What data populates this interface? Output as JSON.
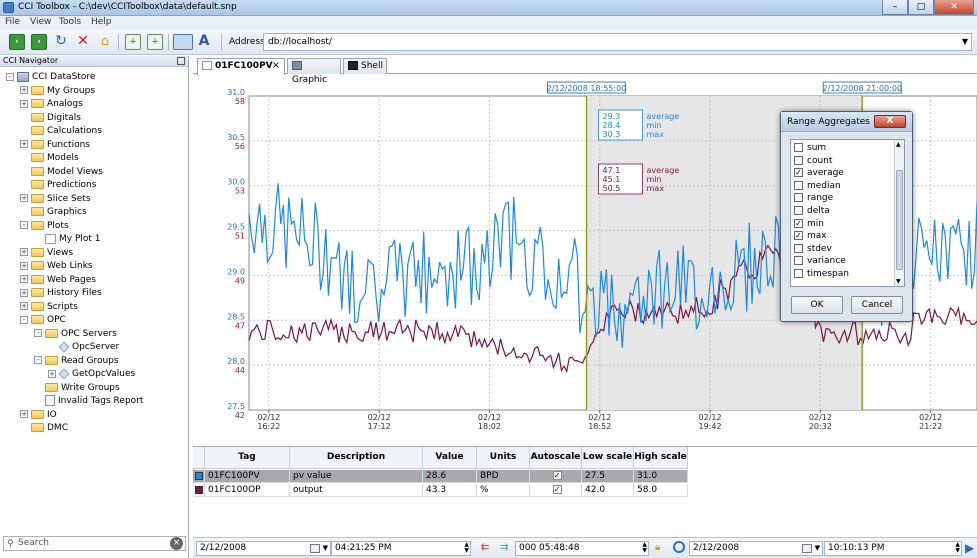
{
  "window": {
    "title": "CCI Toolbox - C:\\dev\\CCIToolbox\\data\\default.snp"
  },
  "menu": [
    "File",
    "View",
    "Tools",
    "Help"
  ],
  "address": {
    "label": "Address",
    "value": "db://localhost/"
  },
  "navigator": {
    "title": "CCI Navigator",
    "search_placeholder": "Search",
    "items": [
      {
        "label": "CCI DataStore",
        "depth": 0,
        "icon": "root",
        "exp": "-"
      },
      {
        "label": "My Groups",
        "depth": 1,
        "icon": "folder",
        "exp": "+"
      },
      {
        "label": "Analogs",
        "depth": 1,
        "icon": "folder",
        "exp": "+"
      },
      {
        "label": "Digitals",
        "depth": 1,
        "icon": "folder",
        "exp": ""
      },
      {
        "label": "Calculations",
        "depth": 1,
        "icon": "folder",
        "exp": ""
      },
      {
        "label": "Functions",
        "depth": 1,
        "icon": "folder",
        "exp": "+"
      },
      {
        "label": "Models",
        "depth": 1,
        "icon": "folder",
        "exp": ""
      },
      {
        "label": "Model Views",
        "depth": 1,
        "icon": "folder",
        "exp": ""
      },
      {
        "label": "Predictions",
        "depth": 1,
        "icon": "folder",
        "exp": ""
      },
      {
        "label": "Slice Sets",
        "depth": 1,
        "icon": "folder",
        "exp": "+"
      },
      {
        "label": "Graphics",
        "depth": 1,
        "icon": "folder",
        "exp": ""
      },
      {
        "label": "Plots",
        "depth": 1,
        "icon": "folder",
        "exp": "-"
      },
      {
        "label": "My Plot 1",
        "depth": 2,
        "icon": "chart",
        "exp": ""
      },
      {
        "label": "Views",
        "depth": 1,
        "icon": "folder",
        "exp": "+"
      },
      {
        "label": "Web Links",
        "depth": 1,
        "icon": "folder",
        "exp": "+"
      },
      {
        "label": "Web Pages",
        "depth": 1,
        "icon": "folder",
        "exp": "+"
      },
      {
        "label": "History Files",
        "depth": 1,
        "icon": "folder",
        "exp": "+"
      },
      {
        "label": "Scripts",
        "depth": 1,
        "icon": "folder",
        "exp": "+"
      },
      {
        "label": "OPC",
        "depth": 1,
        "icon": "folder",
        "exp": "-"
      },
      {
        "label": "OPC Servers",
        "depth": 2,
        "icon": "folder",
        "exp": "-"
      },
      {
        "label": "OpcServer",
        "depth": 3,
        "icon": "leaf",
        "exp": ""
      },
      {
        "label": "Read Groups",
        "depth": 2,
        "icon": "folder",
        "exp": "-"
      },
      {
        "label": "GetOpcValues",
        "depth": 3,
        "icon": "leaf",
        "exp": "+"
      },
      {
        "label": "Write Groups",
        "depth": 2,
        "icon": "folder",
        "exp": ""
      },
      {
        "label": "Invalid Tags Report",
        "depth": 2,
        "icon": "doc",
        "exp": ""
      },
      {
        "label": "IO",
        "depth": 1,
        "icon": "folder",
        "exp": "+"
      },
      {
        "label": "DMC",
        "depth": 1,
        "icon": "folder",
        "exp": ""
      }
    ]
  },
  "tabs": [
    {
      "label": "01FC100PV",
      "active": true
    },
    {
      "label": "Graphic",
      "active": false
    },
    {
      "label": "Shell",
      "active": false
    }
  ],
  "chart_data": {
    "type": "line",
    "x_ticks": [
      "02/12\n16:22",
      "02/12\n17:12",
      "02/12\n18:02",
      "02/12\n18:52",
      "02/12\n19:42",
      "02/12\n20:32",
      "02/12\n21:22"
    ],
    "y_left_blue": {
      "min": 27.5,
      "max": 31.0,
      "ticks": [
        "31.0",
        "30.5",
        "30.0",
        "29.5",
        "29.0",
        "28.5",
        "28.0",
        "27.5"
      ]
    },
    "y_left_red": {
      "min": 42,
      "max": 58,
      "ticks": [
        "58",
        "56",
        "53",
        "51",
        "49",
        "47",
        "44",
        "42"
      ]
    },
    "cursors": [
      {
        "label": "2/12/2008 18:55:00",
        "x_minutes": 153
      },
      {
        "label": "2/12/2008 21:00:00",
        "x_minutes": 278
      }
    ],
    "x_range_minutes": [
      0,
      330
    ],
    "series": [
      {
        "name": "01FC100PV",
        "color": "#1e88e5",
        "axis": "blue"
      },
      {
        "name": "01FC100OP",
        "color": "#7a1540",
        "axis": "red"
      }
    ],
    "aggregates": [
      {
        "values": [
          "29.3",
          "28.4",
          "30.3"
        ],
        "labels": [
          "average",
          "min",
          "max"
        ],
        "color": "#1e88e5"
      },
      {
        "values": [
          "47.1",
          "45.1",
          "50.5"
        ],
        "labels": [
          "average",
          "min",
          "max"
        ],
        "color": "#7a1540"
      }
    ]
  },
  "table": {
    "headers": [
      "Tag",
      "Description",
      "Value",
      "Units",
      "Autoscale",
      "Low scale",
      "High scale"
    ],
    "rows": [
      {
        "color": "#1e88e5",
        "tag": "01FC100PV",
        "description": "pv value",
        "value": "28.6",
        "units": "BPD",
        "autoscale": "✓",
        "low": "27.5",
        "high": "31.0"
      },
      {
        "color": "#7a1540",
        "tag": "01FC100OP",
        "description": "output",
        "value": "43.3",
        "units": "%",
        "autoscale": "✓",
        "low": "42.0",
        "high": "58.0"
      }
    ]
  },
  "status": {
    "start_date": "2/12/2008",
    "start_time": "04:21:25 PM",
    "span": "000 05:48:48",
    "end_date": "2/12/2008",
    "end_time": "10:10:13 PM"
  },
  "dialog": {
    "title": "Range Aggregates",
    "close": "X",
    "options": [
      {
        "label": "sum",
        "checked": false
      },
      {
        "label": "count",
        "checked": false
      },
      {
        "label": "average",
        "checked": true
      },
      {
        "label": "median",
        "checked": false
      },
      {
        "label": "range",
        "checked": false
      },
      {
        "label": "delta",
        "checked": false
      },
      {
        "label": "min",
        "checked": true
      },
      {
        "label": "max",
        "checked": true
      },
      {
        "label": "stdev",
        "checked": false
      },
      {
        "label": "variance",
        "checked": false
      },
      {
        "label": "timespan",
        "checked": false
      }
    ],
    "ok": "OK",
    "cancel": "Cancel"
  },
  "colors": {
    "pv": "#1e88e5",
    "op": "#7a1540",
    "cursor": "#9a9a2a",
    "axis_blue": "#2a6fc4",
    "axis_red": "#9b1b3a"
  }
}
